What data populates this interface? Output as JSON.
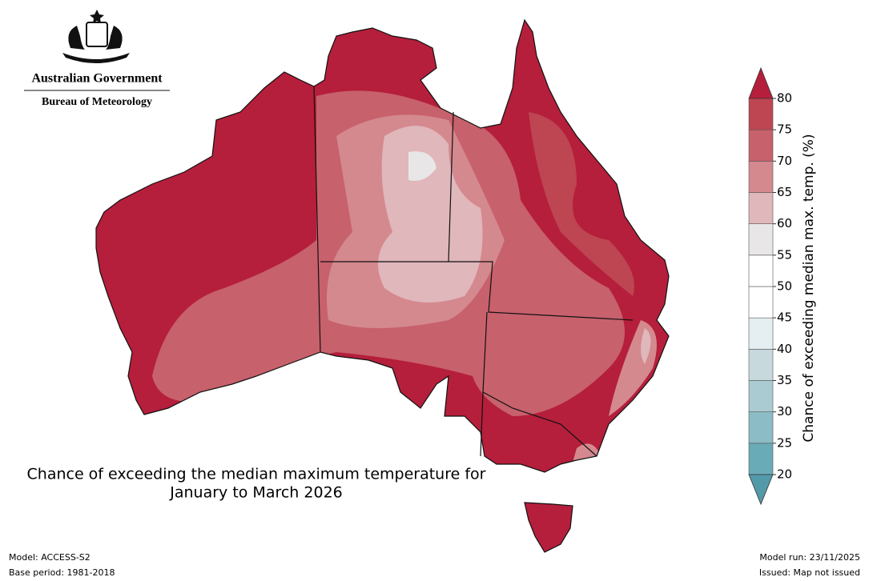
{
  "header": {
    "government": "Australian Government",
    "agency": "Bureau of Meteorology"
  },
  "map_title": [
    "Chance of exceeding the median maximum temperature for",
    "January to March 2026"
  ],
  "colorbar": {
    "label": "Chance of exceeding median max. temp. (%)",
    "ticks": [
      20,
      25,
      30,
      35,
      40,
      45,
      50,
      55,
      60,
      65,
      70,
      75,
      80
    ],
    "colors": [
      "#6aabb8",
      "#8cbcc6",
      "#a9cbd1",
      "#c7d9dd",
      "#e5eef0",
      "#ffffff",
      "#ffffff",
      "#e8e6e7",
      "#e0b7bb",
      "#d4898f",
      "#c7616c",
      "#be4552"
    ],
    "under_color": "#529aa9",
    "over_color": "#b51f3b"
  },
  "footer": {
    "model": "Model: ACCESS-S2",
    "base_period": "Base period: 1981-2018",
    "model_run": "Model run: 23/11/2025",
    "issued": "Issued: Map not issued"
  }
}
